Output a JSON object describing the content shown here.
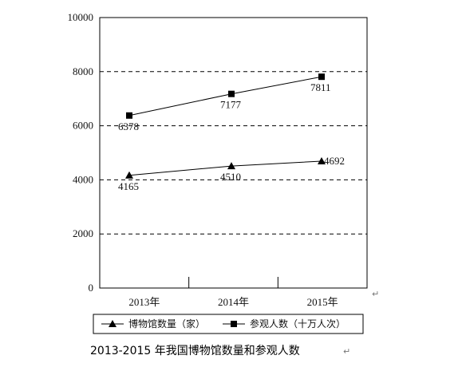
{
  "chart_data": {
    "type": "line",
    "categories": [
      "2013年",
      "2014年",
      "2015年"
    ],
    "ylim": [
      0,
      10000
    ],
    "yticks": [
      0,
      2000,
      4000,
      6000,
      8000,
      10000
    ],
    "grid": "horizontal dashed",
    "legend_position": "bottom",
    "title": "",
    "xlabel": "",
    "ylabel": "",
    "series": [
      {
        "name": "博物馆数量（家）",
        "values": [
          4165,
          4510,
          4692
        ],
        "marker": "triangle",
        "color": "#000000"
      },
      {
        "name": "参观人数（十万人次）",
        "values": [
          6378,
          7177,
          7811
        ],
        "marker": "square",
        "color": "#000000"
      }
    ]
  },
  "caption": "2013-2015 年我国博物馆数量和参观人数",
  "paragraph_mark": "↵"
}
